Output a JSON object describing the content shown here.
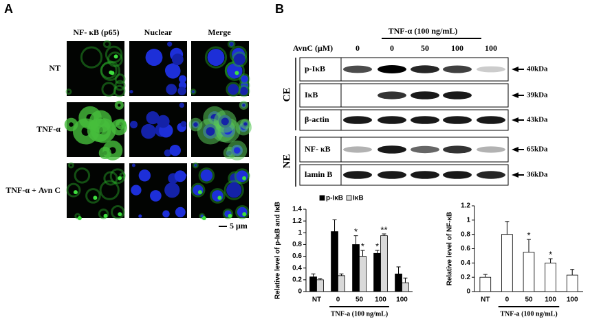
{
  "panel_a": {
    "label": "A",
    "column_headers": [
      "NF- κB (p65)",
      "Nuclear",
      "Merge"
    ],
    "row_labels": [
      "NT",
      "TNF-α",
      "TNF-α + Avn C"
    ],
    "scale_bar": "5 μm"
  },
  "panel_b": {
    "label": "B",
    "treatment": "TNF-α (100 ng/mL)",
    "concentration_label": "AvnC (μM)",
    "concentrations": [
      "0",
      "0",
      "50",
      "100",
      "100"
    ],
    "fractions": [
      "CE",
      "NE"
    ],
    "bands": [
      {
        "label": "p-IκB",
        "kda": "40kDa"
      },
      {
        "label": "IκB",
        "kda": "39kDa"
      },
      {
        "label": "β-actin",
        "kda": "43kDa"
      },
      {
        "label": "NF- κB",
        "kda": "65kDa"
      },
      {
        "label": "lamin B",
        "kda": "36kDa"
      }
    ]
  },
  "chart_data": [
    {
      "type": "bar",
      "ylabel": "Relative level of p-IκB and IκB",
      "xlabel": "TNF-a (100 ng/mL)",
      "categories": [
        "NT",
        "0",
        "50",
        "100",
        "100"
      ],
      "ylim": [
        0,
        1.4
      ],
      "yticks": [
        0,
        0.2,
        0.4,
        0.6,
        0.8,
        1,
        1.2,
        1.4
      ],
      "legend": "top",
      "series": [
        {
          "name": "p-IκB",
          "color": "#000000",
          "values": [
            0.25,
            1.02,
            0.8,
            0.65,
            0.3
          ],
          "errors": [
            0.05,
            0.2,
            0.15,
            0.05,
            0.12
          ],
          "value_labels": [
            null,
            null,
            "*",
            "*",
            null
          ]
        },
        {
          "name": "IκB",
          "color": "#d9d9d9",
          "values": [
            0.2,
            0.27,
            0.6,
            0.95,
            0.15
          ],
          "errors": [
            0.02,
            0.03,
            0.1,
            0.03,
            0.08
          ],
          "value_labels": [
            null,
            null,
            "*",
            "**",
            null
          ]
        }
      ]
    },
    {
      "type": "bar",
      "ylabel": "Relative level of NF-κB",
      "xlabel": "TNF-a (100 ng/mL)",
      "categories": [
        "NT",
        "0",
        "50",
        "100",
        "100"
      ],
      "ylim": [
        0,
        1.2
      ],
      "yticks": [
        0,
        0.2,
        0.4,
        0.6,
        0.8,
        1,
        1.2
      ],
      "series": [
        {
          "color": "#ffffff",
          "values": [
            0.2,
            0.8,
            0.55,
            0.4,
            0.23
          ],
          "errors": [
            0.04,
            0.18,
            0.18,
            0.06,
            0.08
          ],
          "value_labels": [
            null,
            null,
            "*",
            "*",
            null
          ]
        }
      ]
    }
  ]
}
